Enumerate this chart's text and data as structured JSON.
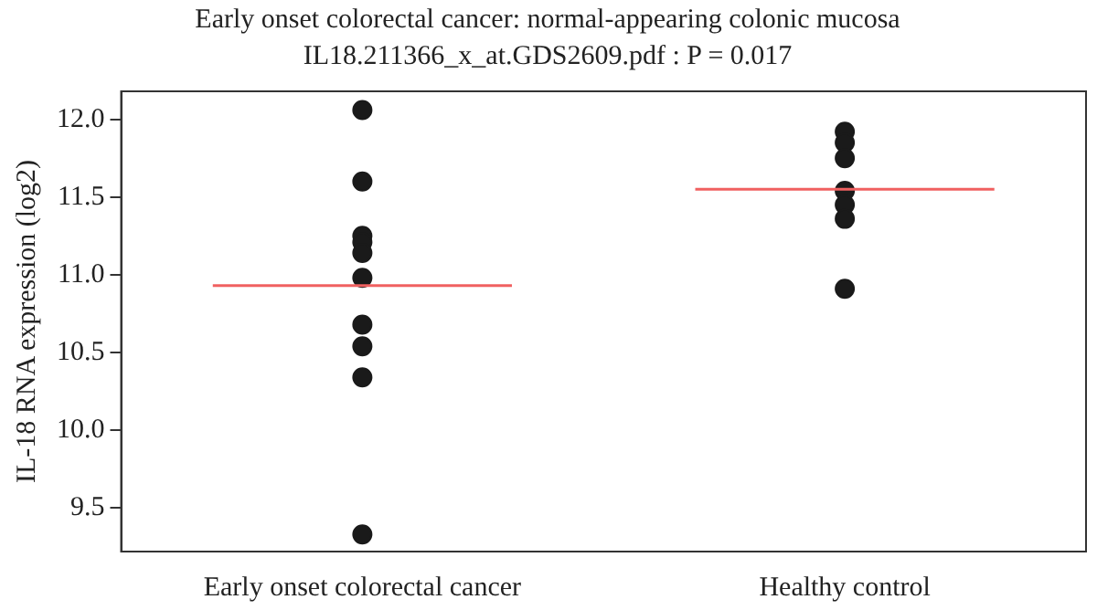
{
  "chart_data": {
    "type": "scatter",
    "title": "Early onset colorectal cancer: normal-appearing colonic mucosa",
    "subtitle": "IL18.211366_x_at.GDS2609.pdf : P = 0.017",
    "ylabel": "IL-18 RNA expression (log2)",
    "categories": [
      "Early onset colorectal cancer",
      "Healthy control"
    ],
    "series": [
      {
        "color": "#1a1a1a",
        "x": [
          "Early onset colorectal cancer",
          "Early onset colorectal cancer",
          "Early onset colorectal cancer",
          "Early onset colorectal cancer",
          "Early onset colorectal cancer",
          "Early onset colorectal cancer",
          "Early onset colorectal cancer",
          "Early onset colorectal cancer",
          "Early onset colorectal cancer",
          "Early onset colorectal cancer"
        ],
        "values": [
          12.06,
          11.6,
          11.25,
          11.21,
          11.14,
          10.98,
          10.68,
          10.54,
          10.34,
          9.33
        ]
      },
      {
        "color": "#1a1a1a",
        "x": [
          "Healthy control",
          "Healthy control",
          "Healthy control",
          "Healthy control",
          "Healthy control",
          "Healthy control",
          "Healthy control"
        ],
        "values": [
          11.92,
          11.85,
          11.75,
          11.54,
          11.45,
          11.36,
          10.91
        ]
      }
    ],
    "ref_lines": [
      {
        "axis": "y",
        "value": 10.93,
        "color": "#f06060"
      },
      {
        "axis": "y",
        "value": 11.55,
        "color": "#f06060"
      }
    ],
    "ylim": [
      9.22,
      12.18
    ],
    "yticks": [
      9.5,
      {
        "value": 10,
        "label": "10.0"
      },
      10.5,
      {
        "value": 11,
        "label": "11.0"
      },
      11.5,
      {
        "value": 12,
        "label": "12.0"
      }
    ],
    "grid": false,
    "legend": false,
    "marker": "circle"
  }
}
